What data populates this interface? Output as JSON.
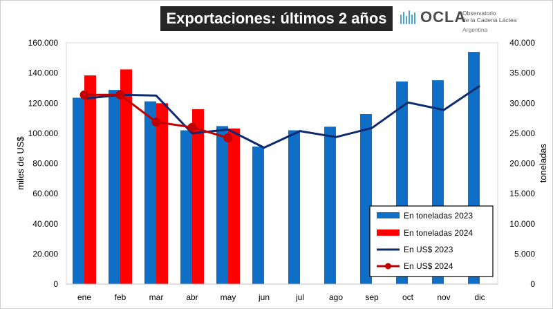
{
  "header": {
    "title": "Exportaciones: últimos 2 años",
    "logo_word": "OCLA",
    "logo_line1": "Observatorio",
    "logo_line2": "de la Cadena Láctea",
    "logo_line3": "Argentina"
  },
  "chart_data": {
    "type": "bar+line",
    "categories": [
      "ene",
      "feb",
      "mar",
      "abr",
      "may",
      "jun",
      "jul",
      "ago",
      "sep",
      "oct",
      "nov",
      "dic"
    ],
    "ylabel_left": "miles de US$",
    "ylabel_right": "toneladas",
    "ylim_left": [
      0,
      160000
    ],
    "ylim_right": [
      0,
      40000
    ],
    "left_ticks": [
      "0",
      "20.000",
      "40.000",
      "60.000",
      "80.000",
      "100.000",
      "120.000",
      "140.000",
      "160.000"
    ],
    "right_ticks": [
      "0",
      "5.000",
      "10.000",
      "15.000",
      "20.000",
      "25.000",
      "30.000",
      "35.000",
      "40.000"
    ],
    "grid": false,
    "legend_position": "bottom-right",
    "series": [
      {
        "name": "En toneladas 2023",
        "type": "bar",
        "axis": "right",
        "color": "#0f6fc6",
        "values": [
          30900,
          32200,
          30300,
          25500,
          26200,
          22800,
          25500,
          26100,
          28200,
          33600,
          33800,
          38500
        ]
      },
      {
        "name": "En toneladas 2024",
        "type": "bar",
        "axis": "right",
        "color": "#ff0000",
        "values": [
          34600,
          35600,
          30000,
          29000,
          25800,
          null,
          null,
          null,
          null,
          null,
          null,
          null
        ]
      },
      {
        "name": "En US$ 2023",
        "type": "line",
        "axis": "left",
        "color": "#0b2a6f",
        "values": [
          123000,
          125500,
          125000,
          100000,
          102500,
          90500,
          101500,
          97500,
          103500,
          120500,
          115500,
          131500
        ]
      },
      {
        "name": "En US$ 2024",
        "type": "line",
        "axis": "left",
        "color": "#c00000",
        "marker": "circle",
        "values": [
          125500,
          125500,
          107500,
          104000,
          97000,
          null,
          null,
          null,
          null,
          null,
          null,
          null
        ]
      }
    ]
  }
}
